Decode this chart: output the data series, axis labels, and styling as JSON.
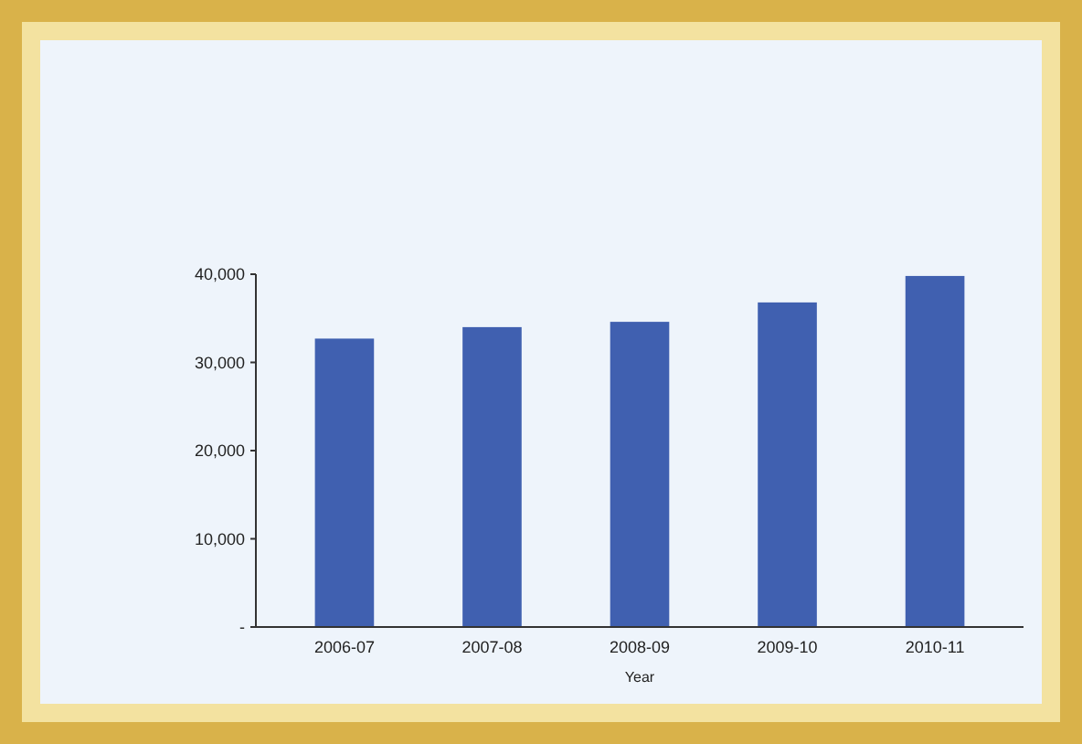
{
  "chart_data": {
    "type": "bar",
    "xlabel": "Year",
    "categories": [
      "2006-07",
      "2007-08",
      "2008-09",
      "2009-10",
      "2010-11"
    ],
    "values": [
      32700,
      34000,
      34600,
      36800,
      39800
    ],
    "color": "#4060b0",
    "ylim": [
      0,
      40000
    ],
    "yticks": [
      {
        "value": 0,
        "label": "-"
      },
      {
        "value": 10000,
        "label": "10,000"
      },
      {
        "value": 20000,
        "label": "20,000"
      },
      {
        "value": 30000,
        "label": "30,000"
      },
      {
        "value": 40000,
        "label": "40,000"
      }
    ],
    "grid": false
  }
}
